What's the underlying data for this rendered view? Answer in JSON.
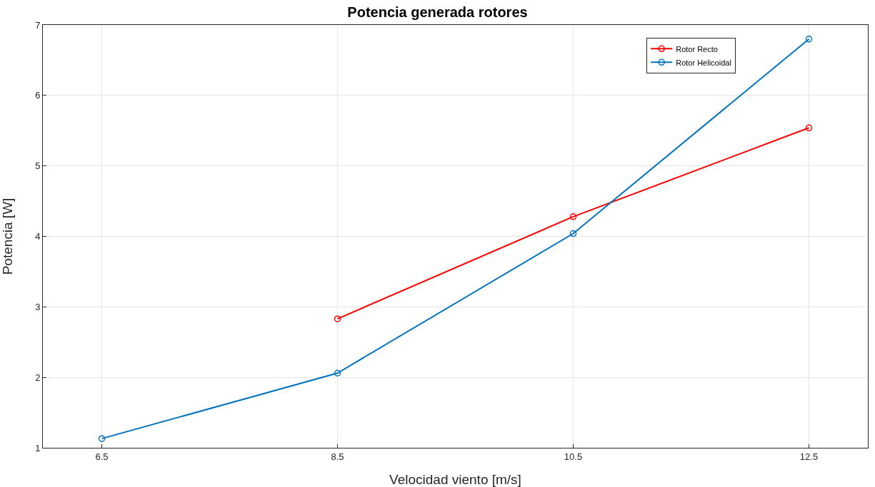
{
  "chart_data": {
    "type": "line",
    "title": "Potencia generada rotores",
    "xlabel": "Velocidad viento [m/s]",
    "ylabel": "Potencia [W]",
    "x": [
      6.5,
      8.5,
      10.5,
      12.5
    ],
    "series": [
      {
        "name": "Rotor Recto",
        "color": "#ff0000",
        "values": [
          null,
          2.83,
          4.28,
          5.54
        ]
      },
      {
        "name": "Rotor Helicoidal",
        "color": "#0072bd",
        "values": [
          1.13,
          2.06,
          4.04,
          6.8
        ]
      }
    ],
    "xlim": [
      6,
      13
    ],
    "xticks": [
      6.5,
      8.5,
      10.5,
      12.5
    ],
    "ylim": [
      1,
      7
    ],
    "yticks": [
      1,
      2,
      3,
      4,
      5,
      6,
      7
    ],
    "grid": true,
    "legend": "top right",
    "marker": "circle",
    "line_style": "solid"
  }
}
